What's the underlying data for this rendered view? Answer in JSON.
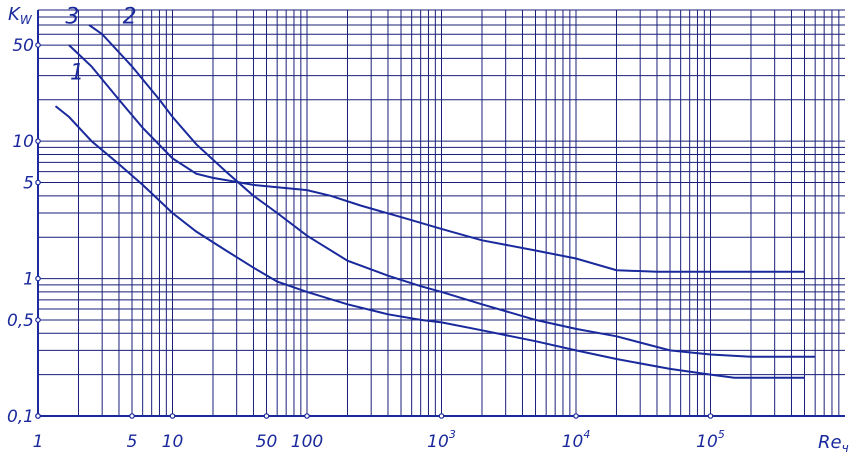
{
  "chart_data": {
    "type": "line",
    "title": "",
    "xlabel": "Re",
    "xlabel_sub": "ч",
    "ylabel": "K",
    "ylabel_sub": "W",
    "x_scale": "log",
    "y_scale": "log",
    "xlim": [
      1,
      1000000
    ],
    "ylim": [
      0.1,
      90
    ],
    "grid": true,
    "legend": "none",
    "x_ticks": [
      {
        "value": 1,
        "label": "1"
      },
      {
        "value": 5,
        "label": "5"
      },
      {
        "value": 10,
        "label": "10"
      },
      {
        "value": 50,
        "label": "50"
      },
      {
        "value": 100,
        "label": "100"
      },
      {
        "value": 1000,
        "label": "10",
        "sup": "3"
      },
      {
        "value": 10000,
        "label": "10",
        "sup": "4"
      },
      {
        "value": 100000,
        "label": "10",
        "sup": "5"
      }
    ],
    "y_ticks": [
      {
        "value": 0.1,
        "label": "0,1"
      },
      {
        "value": 0.5,
        "label": "0,5"
      },
      {
        "value": 1,
        "label": "1"
      },
      {
        "value": 5,
        "label": "5"
      },
      {
        "value": 10,
        "label": "10"
      },
      {
        "value": 50,
        "label": "50"
      }
    ],
    "series": [
      {
        "name": "1",
        "x": [
          1.35,
          1.7,
          2.5,
          4,
          6,
          10,
          15,
          25,
          40,
          60,
          100,
          200,
          400,
          700,
          1000,
          2000,
          5000,
          10000,
          20000,
          50000,
          100000,
          150000,
          500000
        ],
        "y": [
          18,
          15,
          10,
          6.8,
          4.8,
          3,
          2.2,
          1.6,
          1.2,
          0.95,
          0.8,
          0.65,
          0.55,
          0.5,
          0.48,
          0.42,
          0.35,
          0.3,
          0.26,
          0.22,
          0.2,
          0.19,
          0.19
        ]
      },
      {
        "name": "2",
        "x": [
          2.4,
          3,
          5,
          8,
          10,
          15,
          25,
          40,
          60,
          100,
          200,
          400,
          700,
          1000,
          2000,
          5000,
          10000,
          20000,
          50000,
          100000,
          200000,
          600000
        ],
        "y": [
          70,
          60,
          35,
          20,
          15,
          9.5,
          6,
          4,
          3,
          2.05,
          1.35,
          1.05,
          0.88,
          0.8,
          0.65,
          0.5,
          0.43,
          0.38,
          0.3,
          0.28,
          0.27,
          0.27
        ]
      },
      {
        "name": "3",
        "x": [
          1.7,
          2.5,
          4,
          6,
          10,
          15,
          20,
          40,
          100,
          150,
          250,
          500,
          1000,
          2000,
          5000,
          10000,
          20000,
          40000,
          100000,
          500000
        ],
        "y": [
          50,
          35,
          20,
          12.5,
          7.5,
          5.8,
          5.4,
          4.8,
          4.4,
          4,
          3.4,
          2.8,
          2.3,
          1.9,
          1.6,
          1.4,
          1.15,
          1.12,
          1.12,
          1.12
        ]
      }
    ],
    "curve_labels": [
      {
        "series": "1",
        "text": "1",
        "x": 1.95,
        "y": 28
      },
      {
        "series": "2",
        "text": "2",
        "x": 4.8,
        "y": 72
      },
      {
        "series": "3",
        "text": "3",
        "x": 1.8,
        "y": 72
      }
    ]
  }
}
